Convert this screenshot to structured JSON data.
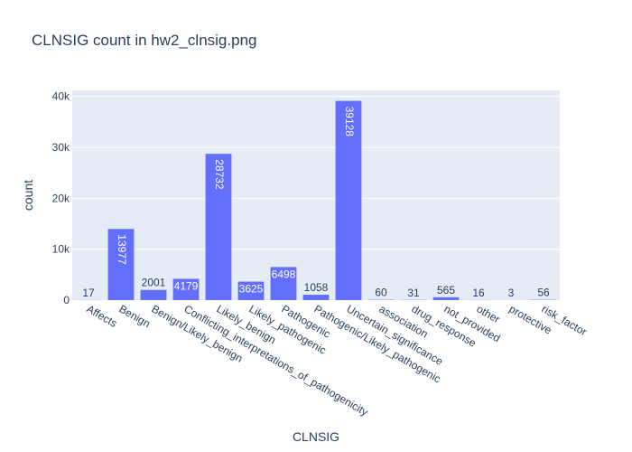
{
  "chart_data": {
    "type": "bar",
    "title": "CLNSIG count in hw2_clnsig.png",
    "xlabel": "CLNSIG",
    "ylabel": "count",
    "categories": [
      "Affects",
      "Benign",
      "Benign/Likely_benign",
      "Conflicting_interpretations_of_pathogenicity",
      "Likely_benign",
      "Likely_pathogenic",
      "Pathogenic",
      "Pathogenic/Likely_pathogenic",
      "Uncertain_significance",
      "association",
      "drug_response",
      "not_provided",
      "other",
      "protective",
      "risk_factor"
    ],
    "values": [
      17,
      13977,
      2001,
      4179,
      28732,
      3625,
      6498,
      1058,
      39128,
      60,
      31,
      565,
      16,
      3,
      56
    ],
    "value_labels": [
      "17",
      "13977",
      "2001",
      "4179",
      "28732",
      "3625",
      "6498",
      "1058",
      "39128",
      "60",
      "31",
      "565",
      "16",
      "3",
      "56"
    ],
    "yticks": [
      0,
      10000,
      20000,
      30000,
      40000
    ],
    "ytick_labels": [
      "0",
      "10k",
      "20k",
      "30k",
      "40k"
    ],
    "ylim": [
      0,
      41187
    ],
    "bar_color": "#636efa",
    "plot_bg": "#e5ecf6",
    "grid": true
  }
}
